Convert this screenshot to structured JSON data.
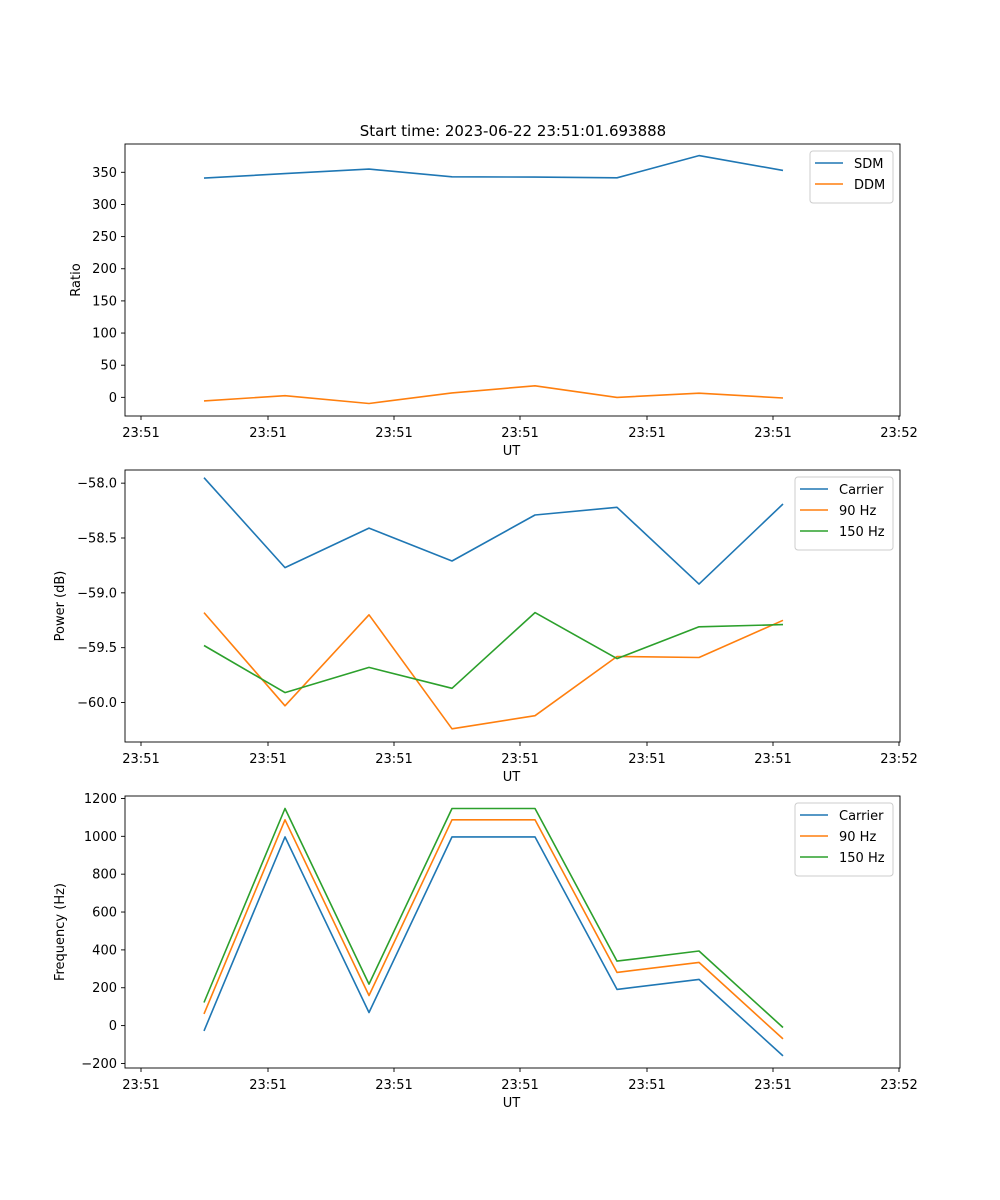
{
  "figure": {
    "suptitle": "Start time: 2023-06-22 23:51:01.693888"
  },
  "chart_data": [
    {
      "type": "line",
      "title": "Start time: 2023-06-22 23:51:01.693888",
      "xlabel": "UT",
      "ylabel": "Ratio",
      "x_tick_labels": [
        "23:51",
        "23:51",
        "23:51",
        "23:51",
        "23:51",
        "23:51",
        "23:51"
      ],
      "ylim": [
        -29,
        394
      ],
      "yticks": [
        0,
        50,
        100,
        150,
        200,
        250,
        300,
        350
      ],
      "legend_position": "top-right",
      "grid": false,
      "series": [
        {
          "name": "SDM",
          "color": "#1f77b4",
          "values": [
            341,
            348,
            355,
            343,
            342.5,
            341.5,
            376,
            353
          ]
        },
        {
          "name": "DDM",
          "color": "#ff7f0e",
          "values": [
            -5.5,
            2.5,
            -9.5,
            7,
            18,
            0,
            6.5,
            -1
          ]
        }
      ]
    },
    {
      "type": "line",
      "title": "",
      "xlabel": "UT",
      "ylabel": "Power (dB)",
      "x_tick_labels": [
        "23:51",
        "23:51",
        "23:51",
        "23:51",
        "23:51",
        "23:51",
        "23:51"
      ],
      "ylim": [
        -60.36,
        -57.88
      ],
      "yticks": [
        -60.0,
        -59.5,
        -59.0,
        -58.5,
        -58.0
      ],
      "ytick_labels": [
        "−60.0",
        "−59.5",
        "−59.0",
        "−58.5",
        "−58.0"
      ],
      "legend_position": "top-right",
      "grid": false,
      "series": [
        {
          "name": "Carrier",
          "color": "#1f77b4",
          "values": [
            -57.95,
            -58.77,
            -58.41,
            -58.71,
            -58.29,
            -58.22,
            -58.92,
            -58.19
          ]
        },
        {
          "name": "90 Hz",
          "color": "#ff7f0e",
          "values": [
            -59.18,
            -60.03,
            -59.2,
            -60.24,
            -60.12,
            -59.58,
            -59.59,
            -59.25
          ]
        },
        {
          "name": "150 Hz",
          "color": "#2ca02c",
          "values": [
            -59.48,
            -59.91,
            -59.68,
            -59.87,
            -59.18,
            -59.6,
            -59.31,
            -59.29
          ]
        }
      ]
    },
    {
      "type": "line",
      "title": "",
      "xlabel": "UT",
      "ylabel": "Frequency (Hz)",
      "x_tick_labels": [
        "23:51",
        "23:51",
        "23:51",
        "23:51",
        "23:51",
        "23:51",
        "23:51"
      ],
      "ylim": [
        -224,
        1213
      ],
      "yticks": [
        -200,
        0,
        200,
        400,
        600,
        800,
        1000,
        1200
      ],
      "ytick_labels": [
        "−200",
        "0",
        "200",
        "400",
        "600",
        "800",
        "1000",
        "1200"
      ],
      "legend_position": "top-right",
      "grid": false,
      "series": [
        {
          "name": "Carrier",
          "color": "#1f77b4",
          "values": [
            -28,
            997,
            69,
            997,
            997,
            191,
            244,
            -160
          ]
        },
        {
          "name": "90 Hz",
          "color": "#ff7f0e",
          "values": [
            62,
            1087,
            159,
            1087,
            1087,
            281,
            334,
            -70
          ]
        },
        {
          "name": "150 Hz",
          "color": "#2ca02c",
          "values": [
            122,
            1147,
            219,
            1147,
            1147,
            341,
            394,
            -10
          ]
        }
      ]
    }
  ],
  "x_axis": {
    "tick_labels": [
      "23:51",
      "23:51",
      "23:51",
      "23:51",
      "23:51",
      "23:51",
      "23:52"
    ]
  }
}
